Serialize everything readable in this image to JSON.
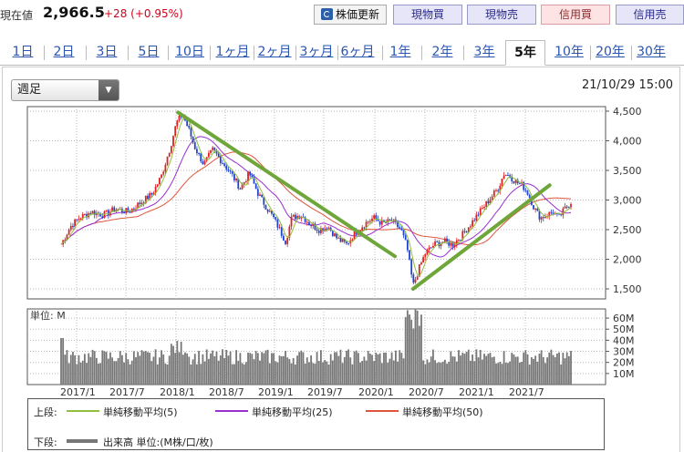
{
  "header": {
    "price_label": "現在値",
    "price": "2,966.5",
    "change": "+28 (+0.95%)",
    "update_button": "株価更新",
    "buttons": [
      "現物買",
      "現物売",
      "信用買",
      "信用売"
    ]
  },
  "tabs": [
    {
      "label": "1日"
    },
    {
      "label": "2日"
    },
    {
      "label": "3日"
    },
    {
      "label": "5日"
    },
    {
      "label": "10日"
    },
    {
      "label": "1ヶ月"
    },
    {
      "label": "2ヶ月"
    },
    {
      "label": "3ヶ月"
    },
    {
      "label": "6ヶ月"
    },
    {
      "label": "1年"
    },
    {
      "label": "2年"
    },
    {
      "label": "3年"
    },
    {
      "label": "5年",
      "active": true
    },
    {
      "label": "10年"
    },
    {
      "label": "20年"
    },
    {
      "label": "30年"
    }
  ],
  "chart_controls": {
    "interval_select": "週足",
    "datetime": "21/10/29 15:00"
  },
  "chart_data": {
    "type": "line",
    "x_ticks": [
      "2017/1",
      "2017/7",
      "2018/1",
      "2018/7",
      "2019/1",
      "2019/7",
      "2020/1",
      "2020/7",
      "2021/1",
      "2021/7"
    ],
    "price_ticks": [
      "4,500",
      "4,000",
      "3,500",
      "3,000",
      "2,500",
      "2,000",
      "1,500"
    ],
    "ylim": [
      1500,
      4500
    ],
    "volume_unit_label": "単位: M",
    "volume_ticks": [
      "60M",
      "50M",
      "40M",
      "30M",
      "20M",
      "10M"
    ],
    "volume_ylim": [
      0,
      65
    ],
    "price_path": [
      [
        0,
        2250
      ],
      [
        0.03,
        2550
      ],
      [
        0.06,
        2700
      ],
      [
        0.1,
        2800
      ],
      [
        0.14,
        2750
      ],
      [
        0.18,
        2850
      ],
      [
        0.22,
        2800
      ],
      [
        0.26,
        2950
      ],
      [
        0.3,
        3100
      ],
      [
        0.33,
        3400
      ],
      [
        0.36,
        3900
      ],
      [
        0.38,
        4300
      ],
      [
        0.4,
        4450
      ],
      [
        0.42,
        4200
      ],
      [
        0.44,
        3900
      ],
      [
        0.47,
        3600
      ],
      [
        0.5,
        3850
      ],
      [
        0.53,
        3650
      ],
      [
        0.56,
        3450
      ],
      [
        0.59,
        3200
      ],
      [
        0.62,
        3450
      ],
      [
        0.65,
        3100
      ],
      [
        0.68,
        2850
      ],
      [
        0.7,
        2700
      ],
      [
        0.72,
        2500
      ],
      [
        0.74,
        2300
      ],
      [
        0.76,
        2700
      ],
      [
        0.79,
        2750
      ],
      [
        0.82,
        2600
      ],
      [
        0.85,
        2500
      ],
      [
        0.88,
        2550
      ],
      [
        0.91,
        2350
      ],
      [
        0.94,
        2250
      ],
      [
        0.97,
        2450
      ],
      [
        1.0,
        2600
      ],
      [
        1.03,
        2700
      ],
      [
        1.06,
        2600
      ],
      [
        1.09,
        2650
      ],
      [
        1.12,
        2500
      ],
      [
        1.14,
        2200
      ],
      [
        1.16,
        1550
      ],
      [
        1.18,
        1850
      ],
      [
        1.2,
        2100
      ],
      [
        1.23,
        2250
      ],
      [
        1.26,
        2300
      ],
      [
        1.29,
        2250
      ],
      [
        1.32,
        2400
      ],
      [
        1.35,
        2600
      ],
      [
        1.38,
        2800
      ],
      [
        1.41,
        3000
      ],
      [
        1.44,
        3200
      ],
      [
        1.46,
        3450
      ],
      [
        1.48,
        3400
      ],
      [
        1.5,
        3300
      ],
      [
        1.52,
        3250
      ],
      [
        1.54,
        3100
      ],
      [
        1.56,
        2850
      ],
      [
        1.58,
        2700
      ],
      [
        1.6,
        2750
      ],
      [
        1.62,
        2800
      ],
      [
        1.64,
        2700
      ],
      [
        1.66,
        2850
      ],
      [
        1.68,
        2966
      ]
    ],
    "trendlines": [
      {
        "from": [
          0.385,
          4480
        ],
        "to": [
          1.1,
          2050
        ]
      },
      {
        "from": [
          1.16,
          1500
        ],
        "to": [
          1.61,
          3250
        ]
      }
    ],
    "legend": {
      "upper_label": "上段:",
      "ma5": "単純移動平均(5)",
      "ma25": "単純移動平均(25)",
      "ma50": "単純移動平均(50)",
      "lower_label": "下段:",
      "volume": "出来高 単位:(M株/口/枚)"
    }
  },
  "colors": {
    "up": "#d22",
    "down": "#2244cc",
    "ma5": "#8fbf3c",
    "ma25": "#9b2fd0",
    "ma50": "#e0553a",
    "trend": "#6fa63a",
    "volume": "#777"
  }
}
